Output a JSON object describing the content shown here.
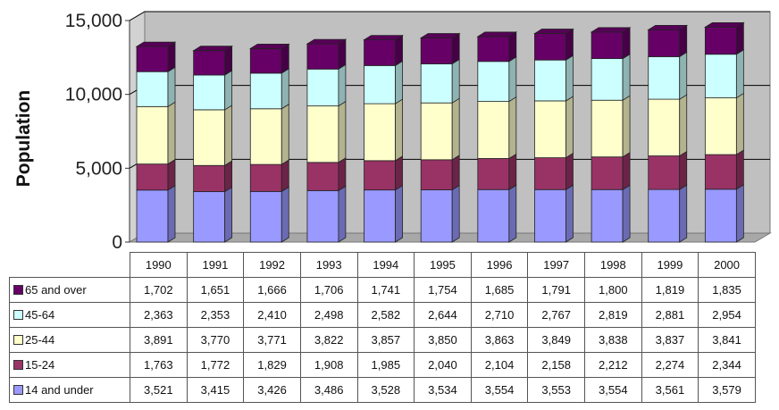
{
  "chart_data": {
    "type": "bar",
    "stacked": true,
    "three_d": true,
    "title": "",
    "xlabel": "",
    "ylabel": "Population",
    "ylim": [
      0,
      15000
    ],
    "yticks": [
      "0",
      "5,000",
      "10,000",
      "15,000"
    ],
    "ytick_values": [
      0,
      5000,
      10000,
      15000
    ],
    "gridlines": true,
    "legend": "data-table-below",
    "categories": [
      "1990",
      "1991",
      "1992",
      "1993",
      "1994",
      "1995",
      "1996",
      "1997",
      "1998",
      "1999",
      "2000"
    ],
    "series": [
      {
        "name": "14 and under",
        "color": "#9999FF",
        "values": [
          3521,
          3415,
          3426,
          3486,
          3528,
          3534,
          3554,
          3553,
          3554,
          3561,
          3579
        ],
        "labels": [
          "3,521",
          "3,415",
          "3,426",
          "3,486",
          "3,528",
          "3,534",
          "3,554",
          "3,553",
          "3,554",
          "3,561",
          "3,579"
        ]
      },
      {
        "name": "15-24",
        "color": "#993366",
        "values": [
          1763,
          1772,
          1829,
          1908,
          1985,
          2040,
          2104,
          2158,
          2212,
          2274,
          2344
        ],
        "labels": [
          "1,763",
          "1,772",
          "1,829",
          "1,908",
          "1,985",
          "2,040",
          "2,104",
          "2,158",
          "2,212",
          "2,274",
          "2,344"
        ]
      },
      {
        "name": "25-44",
        "color": "#FFFFCC",
        "values": [
          3891,
          3770,
          3771,
          3822,
          3857,
          3850,
          3863,
          3849,
          3838,
          3837,
          3841
        ],
        "labels": [
          "3,891",
          "3,770",
          "3,771",
          "3,822",
          "3,857",
          "3,850",
          "3,863",
          "3,849",
          "3,838",
          "3,837",
          "3,841"
        ]
      },
      {
        "name": "45-64",
        "color": "#CCFFFF",
        "values": [
          2363,
          2353,
          2410,
          2498,
          2582,
          2644,
          2710,
          2767,
          2819,
          2881,
          2954
        ],
        "labels": [
          "2,363",
          "2,353",
          "2,410",
          "2,498",
          "2,582",
          "2,644",
          "2,710",
          "2,767",
          "2,819",
          "2,881",
          "2,954"
        ]
      },
      {
        "name": "65 and over",
        "color": "#660066",
        "values": [
          1702,
          1651,
          1666,
          1706,
          1741,
          1754,
          1685,
          1791,
          1800,
          1819,
          1835
        ],
        "labels": [
          "1,702",
          "1,651",
          "1,666",
          "1,706",
          "1,741",
          "1,754",
          "1,685",
          "1,791",
          "1,800",
          "1,819",
          "1,835"
        ]
      }
    ],
    "colors": {
      "wall": "#C0C0C0",
      "floor": "#C0C0C0",
      "grid": "#000000"
    }
  }
}
